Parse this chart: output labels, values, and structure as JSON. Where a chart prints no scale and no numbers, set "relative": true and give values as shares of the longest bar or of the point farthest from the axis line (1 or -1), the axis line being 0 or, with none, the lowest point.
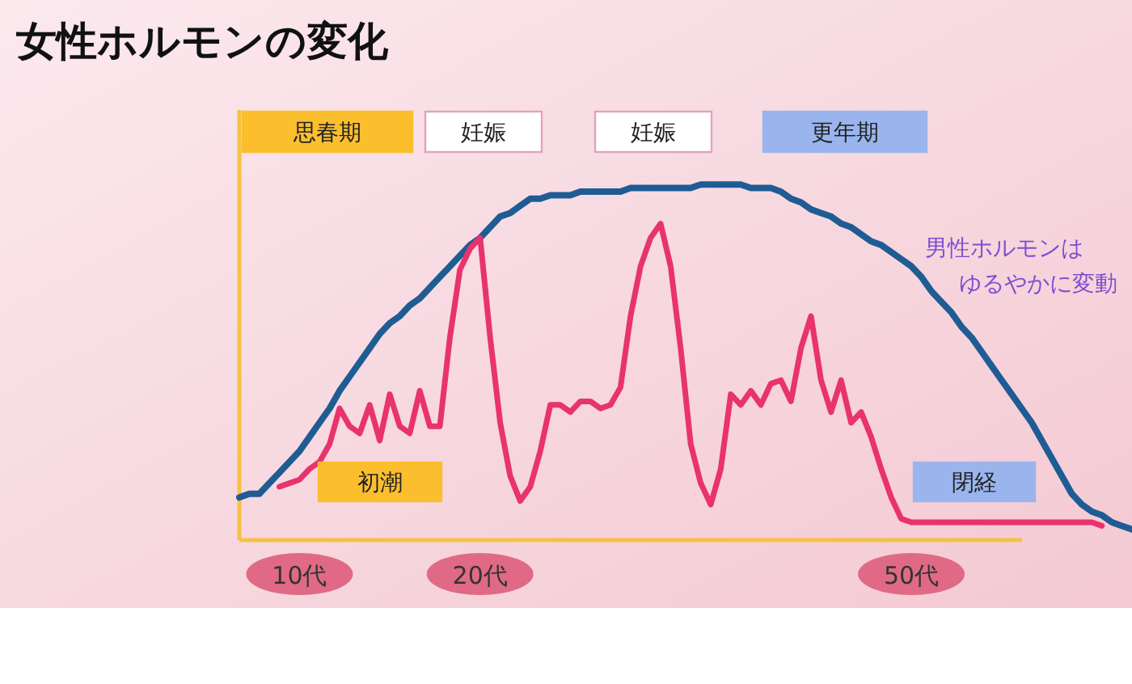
{
  "chart_data": {
    "type": "line",
    "title": "女性ホルモンの変化",
    "relative": true,
    "grid": false,
    "marker": "none",
    "line_style": "solid",
    "categories": [
      null,
      null,
      null,
      null,
      null,
      null,
      "10代",
      null,
      null,
      null,
      null,
      null,
      null,
      null,
      null,
      null,
      null,
      null,
      null,
      null,
      null,
      null,
      null,
      null,
      "20代",
      null,
      null,
      null,
      null,
      null,
      null,
      null,
      null,
      null,
      null,
      null,
      null,
      null,
      null,
      null,
      null,
      null,
      null,
      null,
      null,
      null,
      null,
      null,
      null,
      null,
      null,
      null,
      null,
      null,
      null,
      null,
      null,
      null,
      null,
      null,
      null,
      null,
      null,
      null,
      null,
      null,
      null,
      "50代",
      null,
      null,
      null,
      null,
      null,
      null,
      null,
      null,
      null,
      null,
      null,
      null,
      null,
      null,
      null,
      null,
      null,
      null,
      null,
      null,
      null,
      null
    ],
    "series": [
      {
        "color": "#1f5c94",
        "values": [
          0.12,
          0.13,
          0.13,
          0.16,
          0.19,
          0.22,
          0.25,
          0.29,
          0.33,
          0.37,
          0.42,
          0.46,
          0.5,
          0.54,
          0.58,
          0.61,
          0.63,
          0.66,
          0.68,
          0.71,
          0.74,
          0.77,
          0.8,
          0.83,
          0.85,
          0.88,
          0.91,
          0.92,
          0.94,
          0.96,
          0.96,
          0.97,
          0.97,
          0.97,
          0.98,
          0.98,
          0.98,
          0.98,
          0.98,
          0.99,
          0.99,
          0.99,
          0.99,
          0.99,
          0.99,
          0.99,
          1.0,
          1.0,
          1.0,
          1.0,
          1.0,
          0.99,
          0.99,
          0.99,
          0.98,
          0.96,
          0.95,
          0.93,
          0.92,
          0.91,
          0.89,
          0.88,
          0.86,
          0.84,
          0.83,
          0.81,
          0.79,
          0.77,
          0.74,
          0.7,
          0.67,
          0.64,
          0.6,
          0.57,
          0.53,
          0.49,
          0.45,
          0.41,
          0.37,
          0.33,
          0.28,
          0.23,
          0.18,
          0.13,
          0.1,
          0.08,
          0.07,
          0.05,
          0.04,
          0.03
        ]
      },
      {
        "color": "#e8336d",
        "values": [
          null,
          null,
          null,
          null,
          0.15,
          0.16,
          0.17,
          0.2,
          0.22,
          0.27,
          0.37,
          0.32,
          0.3,
          0.38,
          0.28,
          0.41,
          0.32,
          0.3,
          0.42,
          0.32,
          0.32,
          0.57,
          0.76,
          0.82,
          0.85,
          0.57,
          0.33,
          0.18,
          0.11,
          0.15,
          0.25,
          0.38,
          0.38,
          0.36,
          0.39,
          0.39,
          0.37,
          0.38,
          0.43,
          0.63,
          0.77,
          0.85,
          0.89,
          0.77,
          0.54,
          0.27,
          0.16,
          0.1,
          0.2,
          0.41,
          0.38,
          0.42,
          0.38,
          0.44,
          0.45,
          0.39,
          0.54,
          0.63,
          0.45,
          0.36,
          0.45,
          0.33,
          0.36,
          0.29,
          0.2,
          0.12,
          0.06,
          0.05,
          0.05,
          0.05,
          0.05,
          0.05,
          0.05,
          0.05,
          0.05,
          0.05,
          0.05,
          0.05,
          0.05,
          0.05,
          0.05,
          0.05,
          0.05,
          0.05,
          0.05,
          0.05,
          0.04,
          null,
          null,
          null
        ]
      }
    ],
    "annotations": [
      "思春期",
      "妊娠",
      "妊娠",
      "更年期",
      "初潮",
      "閉経",
      "男性ホルモンは",
      "ゆるやかに変動"
    ]
  }
}
